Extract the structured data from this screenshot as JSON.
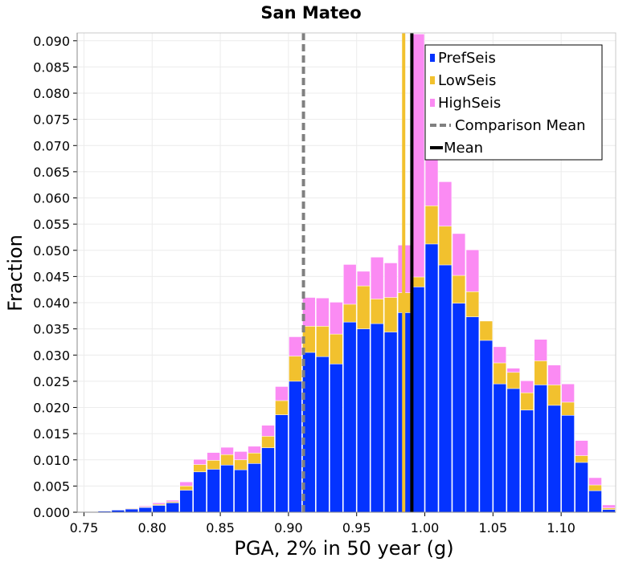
{
  "chart_data": {
    "type": "bar",
    "title": "San Mateo",
    "xlabel": "PGA, 2% in 50 year (g)",
    "ylabel": "Fraction",
    "xlim": [
      0.745,
      1.14
    ],
    "ylim": [
      0,
      0.0915
    ],
    "bin_width": 0.01,
    "grid": true,
    "legend_position": "top-right",
    "x_ticks": [
      "0.75",
      "0.80",
      "0.85",
      "0.90",
      "0.95",
      "1.00",
      "1.05",
      "1.10"
    ],
    "y_ticks": [
      "0.000",
      "0.005",
      "0.010",
      "0.015",
      "0.020",
      "0.025",
      "0.030",
      "0.035",
      "0.040",
      "0.045",
      "0.050",
      "0.055",
      "0.060",
      "0.065",
      "0.070",
      "0.075",
      "0.080",
      "0.085",
      "0.090"
    ],
    "bins": [
      0.755,
      0.765,
      0.775,
      0.785,
      0.795,
      0.805,
      0.815,
      0.825,
      0.835,
      0.845,
      0.855,
      0.865,
      0.875,
      0.885,
      0.895,
      0.905,
      0.915,
      0.925,
      0.935,
      0.945,
      0.955,
      0.965,
      0.975,
      0.985,
      0.995,
      1.005,
      1.015,
      1.025,
      1.035,
      1.045,
      1.055,
      1.065,
      1.075,
      1.085,
      1.095,
      1.105,
      1.115,
      1.125,
      1.135
    ],
    "series": [
      {
        "name": "PrefSeis",
        "color": "#0433ff",
        "values": [
          0.0001,
          0.0002,
          0.0004,
          0.0006,
          0.0009,
          0.0013,
          0.0018,
          0.0042,
          0.0077,
          0.0082,
          0.009,
          0.0081,
          0.0093,
          0.0123,
          0.0186,
          0.025,
          0.0305,
          0.0297,
          0.0283,
          0.0363,
          0.035,
          0.036,
          0.0344,
          0.0381,
          0.043,
          0.0512,
          0.0472,
          0.0399,
          0.0373,
          0.0328,
          0.0245,
          0.0236,
          0.0195,
          0.0243,
          0.0204,
          0.0185,
          0.0095,
          0.0041,
          0.0005
        ]
      },
      {
        "name": "LowSeis",
        "color": "#f2c12e",
        "values": [
          0.0001,
          0.0002,
          0.0004,
          0.0007,
          0.001,
          0.0015,
          0.002,
          0.005,
          0.0091,
          0.0099,
          0.011,
          0.01,
          0.0113,
          0.0145,
          0.0213,
          0.0298,
          0.0355,
          0.0355,
          0.034,
          0.0397,
          0.0432,
          0.0407,
          0.041,
          0.0419,
          0.0449,
          0.0585,
          0.0546,
          0.0452,
          0.0421,
          0.0365,
          0.0285,
          0.0267,
          0.0228,
          0.0289,
          0.0243,
          0.021,
          0.0108,
          0.0052,
          0.0008
        ]
      },
      {
        "name": "HighSeis",
        "color": "#fb8bf3",
        "values": [
          0.0001,
          0.0002,
          0.0005,
          0.0008,
          0.0012,
          0.0018,
          0.0023,
          0.0058,
          0.0101,
          0.0114,
          0.0124,
          0.0116,
          0.0126,
          0.0166,
          0.024,
          0.0335,
          0.041,
          0.0409,
          0.0401,
          0.0473,
          0.046,
          0.0487,
          0.0476,
          0.051,
          0.0913,
          0.088,
          0.0631,
          0.0532,
          0.0501,
          0.0363,
          0.0316,
          0.0275,
          0.0251,
          0.033,
          0.0281,
          0.0245,
          0.0137,
          0.0066,
          0.0014
        ]
      }
    ],
    "vlines": [
      {
        "name": "Comparison Mean",
        "x": 0.911,
        "color": "#808080",
        "style": "dashed"
      },
      {
        "name": "Mean",
        "x": 0.9905,
        "color": "#000000",
        "style": "solid"
      },
      {
        "name": "",
        "x": 0.9845,
        "color": "#f2c12e",
        "style": "solid"
      }
    ],
    "legend": [
      "PrefSeis",
      "LowSeis",
      "HighSeis",
      "Comparison Mean",
      "Mean"
    ]
  }
}
